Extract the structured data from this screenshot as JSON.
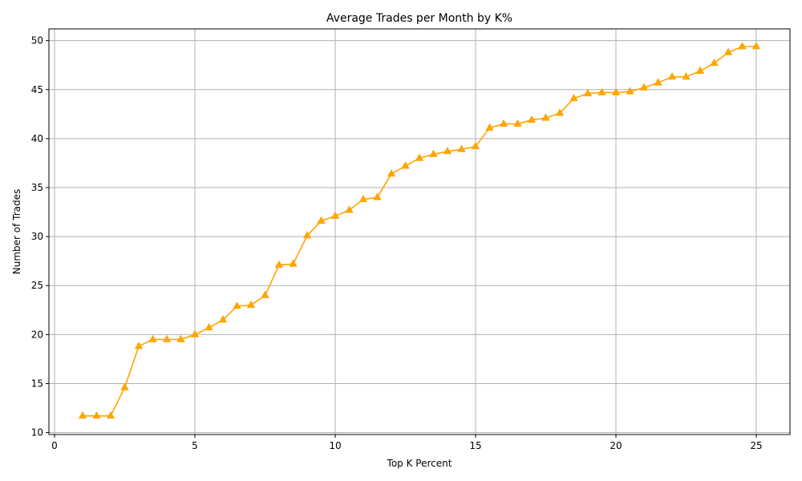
{
  "chart_data": {
    "type": "line",
    "title": "Average Trades per Month by K%",
    "xlabel": "Top K Percent",
    "ylabel": "Number of Trades",
    "xlim": [
      -0.2,
      26.2
    ],
    "ylim": [
      9.8,
      51.2
    ],
    "xticks": [
      0,
      5,
      10,
      15,
      20,
      25
    ],
    "yticks": [
      10,
      15,
      20,
      25,
      30,
      35,
      40,
      45,
      50
    ],
    "grid": true,
    "line_color": "#ffa500",
    "marker": "triangle-up",
    "series": [
      {
        "x": [
          1,
          1.5,
          2,
          2.5,
          3,
          3.5,
          4,
          4.5,
          5,
          5.5,
          6,
          6.5,
          7,
          7.5,
          8,
          8.5,
          9,
          9.5,
          10,
          10.5,
          11,
          11.5,
          12,
          12.5,
          13,
          13.5,
          14,
          14.5,
          15,
          15.5,
          16,
          16.5,
          17,
          17.5,
          18,
          18.5,
          19,
          19.5,
          20,
          20.5,
          21,
          21.5,
          22,
          22.5,
          23,
          23.5,
          24,
          24.5,
          25
        ],
        "values": [
          11.7,
          11.7,
          11.7,
          14.6,
          18.8,
          19.5,
          19.5,
          19.5,
          20.0,
          20.7,
          21.5,
          22.9,
          23.0,
          24.0,
          27.1,
          27.2,
          30.1,
          31.6,
          32.1,
          32.7,
          33.8,
          34.0,
          36.4,
          37.2,
          38.0,
          38.4,
          38.7,
          38.9,
          39.2,
          41.1,
          41.5,
          41.5,
          41.9,
          42.1,
          42.6,
          44.1,
          44.6,
          44.7,
          44.7,
          44.8,
          45.2,
          45.7,
          46.3,
          46.3,
          46.9,
          47.7,
          48.8,
          49.4,
          49.4
        ]
      }
    ]
  }
}
